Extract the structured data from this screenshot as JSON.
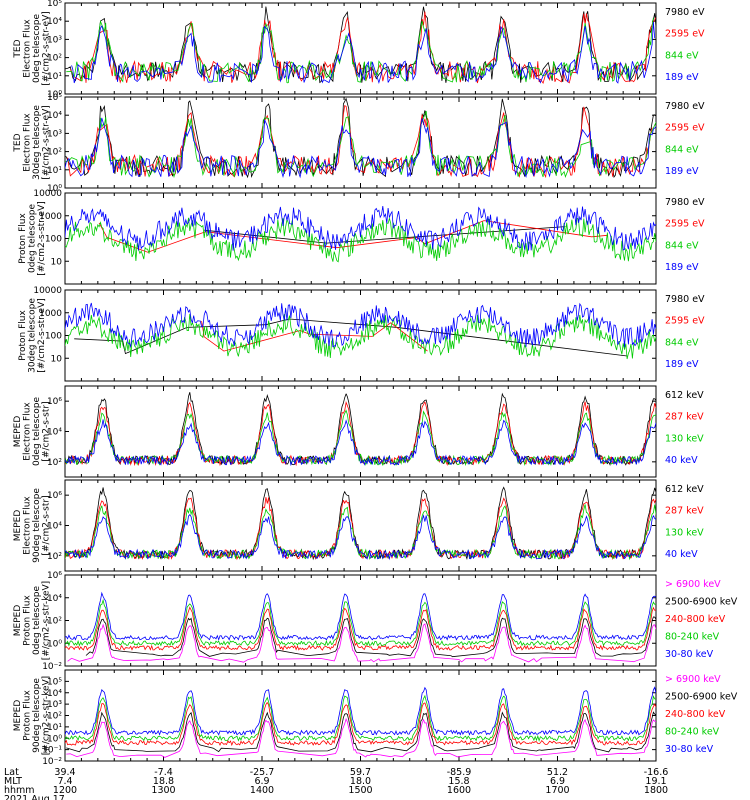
{
  "chart_data": {
    "type": "line",
    "panels": [
      {
        "ylabel": [
          "TED",
          "Electron Flux",
          "0deg telescope",
          "[#/cm2-s-str-eV]"
        ],
        "ylog": true,
        "ylim": [
          1,
          100000
        ],
        "yticks": [
          {
            "v": 1,
            "t": "10⁰"
          },
          {
            "v": 10,
            "t": "10¹"
          },
          {
            "v": 100,
            "t": "10²"
          },
          {
            "v": 1000,
            "t": "10³"
          },
          {
            "v": 10000,
            "t": "10⁴"
          },
          {
            "v": 100000,
            "t": "10⁵"
          }
        ],
        "series": [
          {
            "name": "7980 eV",
            "color": "#000000"
          },
          {
            "name": "2595 eV",
            "color": "#ff0000"
          },
          {
            "name": "844 eV",
            "color": "#00cc00"
          },
          {
            "name": "189 eV",
            "color": "#0000ff"
          }
        ]
      },
      {
        "ylabel": [
          "TED",
          "Electron Flux",
          "30deg telescope",
          "[#/cm2-s-str-eV]"
        ],
        "ylog": true,
        "ylim": [
          1,
          100000
        ],
        "yticks": [
          {
            "v": 1,
            "t": "10⁰"
          },
          {
            "v": 10,
            "t": "10¹"
          },
          {
            "v": 100,
            "t": "10²"
          },
          {
            "v": 1000,
            "t": "10³"
          },
          {
            "v": 10000,
            "t": "10⁴"
          },
          {
            "v": 100000,
            "t": "10⁵"
          }
        ],
        "series": [
          {
            "name": "7980 eV",
            "color": "#000000"
          },
          {
            "name": "2595 eV",
            "color": "#ff0000"
          },
          {
            "name": "844 eV",
            "color": "#00cc00"
          },
          {
            "name": "189 eV",
            "color": "#0000ff"
          }
        ]
      },
      {
        "ylabel": [
          "Proton Flux",
          "0deg telescope",
          "[#/cm2-s-str-eV]"
        ],
        "ylog": true,
        "ylim": [
          1,
          10000
        ],
        "yticks": [
          {
            "v": 10,
            "t": "10"
          },
          {
            "v": 100,
            "t": "100"
          },
          {
            "v": 1000,
            "t": "1000"
          },
          {
            "v": 10000,
            "t": "10000"
          }
        ],
        "series": [
          {
            "name": "7980 eV",
            "color": "#000000"
          },
          {
            "name": "2595 eV",
            "color": "#ff0000"
          },
          {
            "name": "844 eV",
            "color": "#00cc00"
          },
          {
            "name": "189 eV",
            "color": "#0000ff"
          }
        ]
      },
      {
        "ylabel": [
          "Proton Flux",
          "30deg telescope",
          "[#/cm2-s-str-eV]"
        ],
        "ylog": true,
        "ylim": [
          1,
          10000
        ],
        "yticks": [
          {
            "v": 10,
            "t": "10"
          },
          {
            "v": 100,
            "t": "100"
          },
          {
            "v": 1000,
            "t": "1000"
          },
          {
            "v": 10000,
            "t": "10000"
          }
        ],
        "series": [
          {
            "name": "7980 eV",
            "color": "#000000"
          },
          {
            "name": "2595 eV",
            "color": "#ff0000"
          },
          {
            "name": "844 eV",
            "color": "#00cc00"
          },
          {
            "name": "189 eV",
            "color": "#0000ff"
          }
        ]
      },
      {
        "ylabel": [
          "MEPED",
          "Electron Flux",
          "0deg telescope",
          "[#/cm2-s-str]"
        ],
        "ylog": true,
        "ylim": [
          10,
          10000000
        ],
        "yticks": [
          {
            "v": 100,
            "t": "10²"
          },
          {
            "v": 10000,
            "t": "10⁴"
          },
          {
            "v": 1000000,
            "t": "10⁶"
          }
        ],
        "series": [
          {
            "name": "612 keV",
            "color": "#000000"
          },
          {
            "name": "287 keV",
            "color": "#ff0000"
          },
          {
            "name": "130 keV",
            "color": "#00cc00"
          },
          {
            "name": "40 keV",
            "color": "#0000ff"
          }
        ]
      },
      {
        "ylabel": [
          "MEPED",
          "Electron Flux",
          "90deg telescope",
          "[#/cm2-s-str]"
        ],
        "ylog": true,
        "ylim": [
          10,
          10000000
        ],
        "yticks": [
          {
            "v": 100,
            "t": "10²"
          },
          {
            "v": 10000,
            "t": "10⁴"
          },
          {
            "v": 1000000,
            "t": "10⁶"
          }
        ],
        "series": [
          {
            "name": "612 keV",
            "color": "#000000"
          },
          {
            "name": "287 keV",
            "color": "#ff0000"
          },
          {
            "name": "130 keV",
            "color": "#00cc00"
          },
          {
            "name": "40 keV",
            "color": "#0000ff"
          }
        ]
      },
      {
        "ylabel": [
          "MEPED",
          "Proton Flux",
          "0deg telescope",
          "[#/cm2-s-str-keV]"
        ],
        "ylog": true,
        "ylim": [
          0.01,
          1000000
        ],
        "yticks": [
          {
            "v": 0.01,
            "t": "10⁻²"
          },
          {
            "v": 1,
            "t": "10⁰"
          },
          {
            "v": 100,
            "t": "10²"
          },
          {
            "v": 10000,
            "t": "10⁴"
          },
          {
            "v": 1000000,
            "t": "10⁶"
          }
        ],
        "series": [
          {
            "name": "> 6900 keV",
            "color": "#ff00ff"
          },
          {
            "name": "2500-6900 keV",
            "color": "#000000"
          },
          {
            "name": "240-800 keV",
            "color": "#ff0000"
          },
          {
            "name": "80-240 keV",
            "color": "#00cc00"
          },
          {
            "name": "30-80 keV",
            "color": "#0000ff"
          }
        ]
      },
      {
        "ylabel": [
          "MEPED",
          "Proton Flux",
          "90deg telescope",
          "[#/cm2-s-str-keV]"
        ],
        "ylog": true,
        "ylim": [
          0.01,
          1000000
        ],
        "yticks": [
          {
            "v": 0.01,
            "t": "10⁻²"
          },
          {
            "v": 0.1,
            "t": "10⁻¹"
          },
          {
            "v": 1,
            "t": "10⁰"
          },
          {
            "v": 10,
            "t": "10¹"
          },
          {
            "v": 100,
            "t": "10²"
          },
          {
            "v": 1000,
            "t": "10³"
          },
          {
            "v": 10000,
            "t": "10⁴"
          },
          {
            "v": 100000,
            "t": "10⁵"
          }
        ],
        "series": [
          {
            "name": "> 6900 keV",
            "color": "#ff00ff"
          },
          {
            "name": "2500-6900 keV",
            "color": "#000000"
          },
          {
            "name": "240-800 keV",
            "color": "#ff0000"
          },
          {
            "name": "80-240 keV",
            "color": "#00cc00"
          },
          {
            "name": "30-80 keV",
            "color": "#0000ff"
          }
        ]
      }
    ],
    "xaxis": {
      "xlim": [
        1200,
        1800
      ],
      "row_labels": [
        "Lat",
        "MLT",
        "hhmm",
        "2021 Aug 17"
      ],
      "ticks": [
        {
          "hhmm": "1200",
          "lat": "39.4",
          "mlt": "7.4"
        },
        {
          "hhmm": "1300",
          "lat": "-7.4",
          "mlt": "18.8"
        },
        {
          "hhmm": "1400",
          "lat": "-25.7",
          "mlt": "6.9"
        },
        {
          "hhmm": "1500",
          "lat": "59.7",
          "mlt": "18.0"
        },
        {
          "hhmm": "1600",
          "lat": "-85.9",
          "mlt": "15.8"
        },
        {
          "hhmm": "1700",
          "lat": "51.2",
          "mlt": "6.9"
        },
        {
          "hhmm": "1800",
          "lat": "-16.6",
          "mlt": "19.1"
        }
      ]
    },
    "pass_centers_hhmm": [
      1223,
      1316,
      1403,
      1451,
      1539,
      1627,
      1717,
      1759
    ]
  }
}
